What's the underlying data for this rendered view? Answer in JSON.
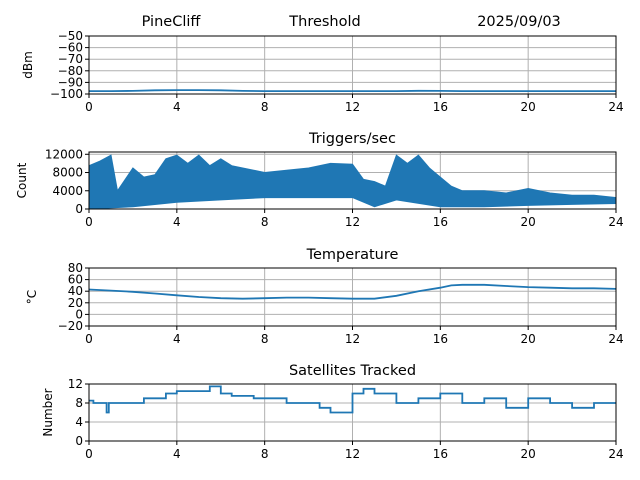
{
  "header": {
    "station": "PineCliff",
    "measure": "Threshold",
    "date": "2025/09/03"
  },
  "colors": {
    "series": "#1f77b4",
    "grid": "#b0b0b0",
    "axis": "#000000"
  },
  "chart_data": [
    {
      "type": "line",
      "title": "",
      "xlabel": "",
      "ylabel": "dBm",
      "xlim": [
        0,
        24
      ],
      "ylim": [
        -100,
        -50
      ],
      "xticks": [
        0,
        4,
        8,
        12,
        16,
        20,
        24
      ],
      "yticks": [
        -100,
        -90,
        -80,
        -70,
        -60,
        -50
      ],
      "ytick_labels": [
        "−100",
        "−90",
        "−80",
        "−70",
        "−60",
        "−50"
      ],
      "grid": true,
      "series": [
        {
          "x": [
            0,
            1,
            2,
            3,
            4,
            5,
            6,
            7,
            8,
            9,
            10,
            11,
            12,
            13,
            14,
            15,
            16,
            17,
            18,
            19,
            20,
            21,
            22,
            23,
            24
          ],
          "values": [
            -97.5,
            -97.5,
            -97.3,
            -96.8,
            -96.6,
            -96.6,
            -96.8,
            -97.3,
            -97.5,
            -97.5,
            -97.5,
            -97.5,
            -97.5,
            -97.5,
            -97.5,
            -97.2,
            -97.3,
            -97.5,
            -97.5,
            -97.5,
            -97.5,
            -97.5,
            -97.5,
            -97.5,
            -97.5
          ]
        }
      ]
    },
    {
      "type": "area",
      "title": "Triggers/sec",
      "xlabel": "",
      "ylabel": "Count",
      "xlim": [
        0,
        24
      ],
      "ylim": [
        0,
        12500
      ],
      "xticks": [
        0,
        4,
        8,
        12,
        16,
        20,
        24
      ],
      "yticks": [
        0,
        4000,
        8000,
        12000
      ],
      "ytick_labels": [
        "0",
        "4000",
        "8000",
        "12000"
      ],
      "grid": true,
      "series": [
        {
          "name": "upper envelope",
          "x": [
            0,
            0.5,
            1,
            1.3,
            2,
            2.5,
            3,
            3.5,
            4,
            4.5,
            5,
            5.5,
            6,
            6.5,
            7,
            8,
            9,
            10,
            11,
            12,
            12.5,
            13,
            13.5,
            14,
            14.5,
            15,
            15.5,
            16,
            16.5,
            17,
            18,
            19,
            20,
            21,
            22,
            23,
            24
          ],
          "values": [
            9500,
            10500,
            11800,
            4000,
            9000,
            7000,
            7500,
            11000,
            11800,
            10000,
            11800,
            9500,
            11000,
            9500,
            9000,
            8000,
            8500,
            9000,
            10000,
            9800,
            6500,
            6000,
            5000,
            11800,
            10000,
            11800,
            9000,
            7000,
            5000,
            4000,
            4000,
            3500,
            4500,
            3500,
            3000,
            3000,
            2500
          ]
        },
        {
          "name": "lower envelope",
          "x": [
            0,
            2,
            4,
            6,
            8,
            10,
            12,
            13,
            14,
            16,
            18,
            20,
            22,
            24
          ],
          "values": [
            0,
            500,
            1500,
            2000,
            2500,
            2500,
            2500,
            500,
            2000,
            500,
            500,
            800,
            1000,
            1200
          ]
        }
      ]
    },
    {
      "type": "line",
      "title": "Temperature",
      "xlabel": "",
      "ylabel": "°C",
      "xlim": [
        0,
        24
      ],
      "ylim": [
        -20,
        80
      ],
      "xticks": [
        0,
        4,
        8,
        12,
        16,
        20,
        24
      ],
      "yticks": [
        -20,
        0,
        20,
        40,
        60,
        80
      ],
      "ytick_labels": [
        "−20",
        "0",
        "20",
        "40",
        "60",
        "80"
      ],
      "grid": true,
      "series": [
        {
          "x": [
            0,
            1,
            2,
            3,
            4,
            5,
            6,
            7,
            8,
            9,
            10,
            11,
            12,
            13,
            14,
            15,
            16,
            16.5,
            17,
            18,
            19,
            20,
            21,
            22,
            23,
            24
          ],
          "values": [
            43,
            41,
            39,
            36,
            33,
            30,
            28,
            27,
            28,
            29,
            29,
            28,
            27,
            27,
            32,
            40,
            46,
            50,
            51,
            51,
            49,
            47,
            46,
            45,
            45,
            44
          ]
        }
      ]
    },
    {
      "type": "line",
      "title": "Satellites Tracked",
      "xlabel": "",
      "ylabel": "Number",
      "xlim": [
        0,
        24
      ],
      "ylim": [
        0,
        12
      ],
      "xticks": [
        0,
        4,
        8,
        12,
        16,
        20,
        24
      ],
      "yticks": [
        0,
        4,
        8,
        12
      ],
      "ytick_labels": [
        "0",
        "4",
        "8",
        "12"
      ],
      "grid": true,
      "series": [
        {
          "x": [
            0,
            0.2,
            0.2,
            0.8,
            0.8,
            0.9,
            0.9,
            2.5,
            2.5,
            3.5,
            3.5,
            4,
            4,
            5.5,
            5.5,
            6,
            6,
            6.5,
            6.5,
            7.5,
            7.5,
            9,
            9,
            10.5,
            10.5,
            11,
            11,
            12,
            12,
            12.5,
            12.5,
            13,
            13,
            14,
            14,
            15,
            15,
            16,
            16,
            17,
            17,
            18,
            18,
            19,
            19,
            20,
            20,
            21,
            21,
            22,
            22,
            23,
            23,
            24
          ],
          "values": [
            8.5,
            8.5,
            8,
            8,
            6,
            6,
            8,
            8,
            9,
            9,
            10,
            10,
            10.5,
            10.5,
            11.5,
            11.5,
            10,
            10,
            9.5,
            9.5,
            9,
            9,
            8,
            8,
            7,
            7,
            6,
            6,
            10,
            10,
            11,
            11,
            10,
            10,
            8,
            8,
            9,
            9,
            10,
            10,
            8,
            8,
            9,
            9,
            7,
            7,
            9,
            9,
            8,
            8,
            7,
            7,
            8,
            8
          ]
        }
      ]
    }
  ]
}
